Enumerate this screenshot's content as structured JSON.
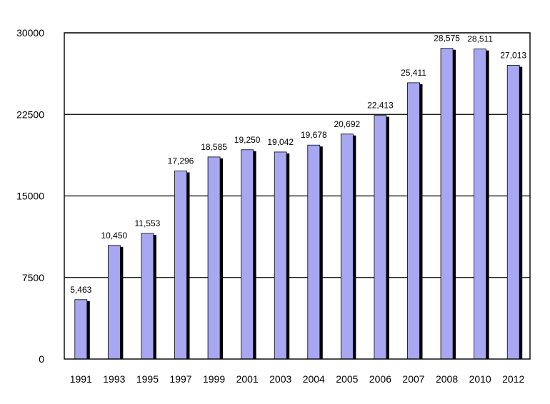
{
  "chart_data": {
    "type": "bar",
    "categories": [
      "1991",
      "1993",
      "1995",
      "1997",
      "1999",
      "2001",
      "2003",
      "2004",
      "2005",
      "2006",
      "2007",
      "2008",
      "2010",
      "2012"
    ],
    "values": [
      5463,
      10450,
      11553,
      17296,
      18585,
      19250,
      19042,
      19678,
      20692,
      22413,
      25411,
      28575,
      28511,
      27013
    ],
    "value_labels": [
      "5,463",
      "10,450",
      "11,553",
      "17,296",
      "18,585",
      "19,250",
      "19,042",
      "19,678",
      "20,692",
      "22,413",
      "25,411",
      "28,575",
      "28,511",
      "27,013"
    ],
    "yticks": [
      0,
      7500,
      15000,
      22500,
      30000
    ],
    "ylim": [
      0,
      30000
    ],
    "grid": true,
    "bar_color": "#a7a7f2",
    "bar_edge_color": "#000000",
    "shadow_color": "#000000",
    "title": "",
    "xlabel": "",
    "ylabel": ""
  }
}
